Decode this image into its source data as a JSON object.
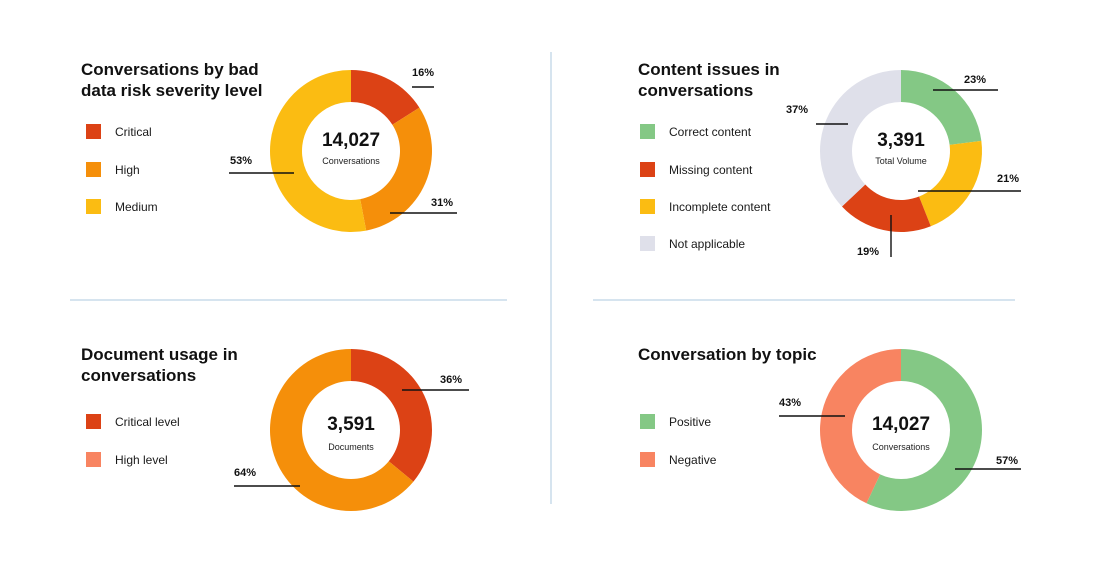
{
  "charts": [
    {
      "type": "pie",
      "title": "Conversations by bad data risk severity level",
      "center_value": "14,027",
      "center_label": "Conversations",
      "slices": [
        {
          "label": "Critical",
          "value": 16,
          "value_label": "16%",
          "color": "#DC4215"
        },
        {
          "label": "High",
          "value": 31,
          "value_label": "31%",
          "color": "#F58F0A"
        },
        {
          "label": "Medium",
          "value": 53,
          "value_label": "53%",
          "color": "#FBBC12"
        }
      ]
    },
    {
      "type": "pie",
      "title": "Content issues in conversations",
      "center_value": "3,391",
      "center_label": "Total Volume",
      "slices": [
        {
          "label": "Correct content",
          "value": 23,
          "value_label": "23%",
          "color": "#84C885"
        },
        {
          "label": "Incomplete content",
          "value": 21,
          "value_label": "21%",
          "color": "#FBBC12"
        },
        {
          "label": "Missing content",
          "value": 19,
          "value_label": "19%",
          "color": "#DC4215"
        },
        {
          "label": "Not applicable",
          "value": 37,
          "value_label": "37%",
          "color": "#DFE0EA"
        }
      ],
      "legend_order": [
        "Correct content",
        "Missing content",
        "Incomplete content",
        "Not applicable"
      ]
    },
    {
      "type": "pie",
      "title": "Document usage in conversations",
      "center_value": "3,591",
      "center_label": "Documents",
      "slices": [
        {
          "label": "Critical level",
          "value": 36,
          "value_label": "36%",
          "color": "#DC4215"
        },
        {
          "label": "",
          "value": 64,
          "value_label": "64%",
          "color": "#F58F0A"
        }
      ],
      "legend_items": [
        {
          "label": "Critical level",
          "color": "#DC4215"
        },
        {
          "label": "High level",
          "color": "#F88461"
        }
      ]
    },
    {
      "type": "pie",
      "title": "Conversation by topic",
      "center_value": "14,027",
      "center_label": "Conversations",
      "slices": [
        {
          "label": "Positive",
          "value": 57,
          "value_label": "57%",
          "color": "#84C885"
        },
        {
          "label": "Negative",
          "value": 43,
          "value_label": "43%",
          "color": "#F88461"
        }
      ]
    }
  ]
}
